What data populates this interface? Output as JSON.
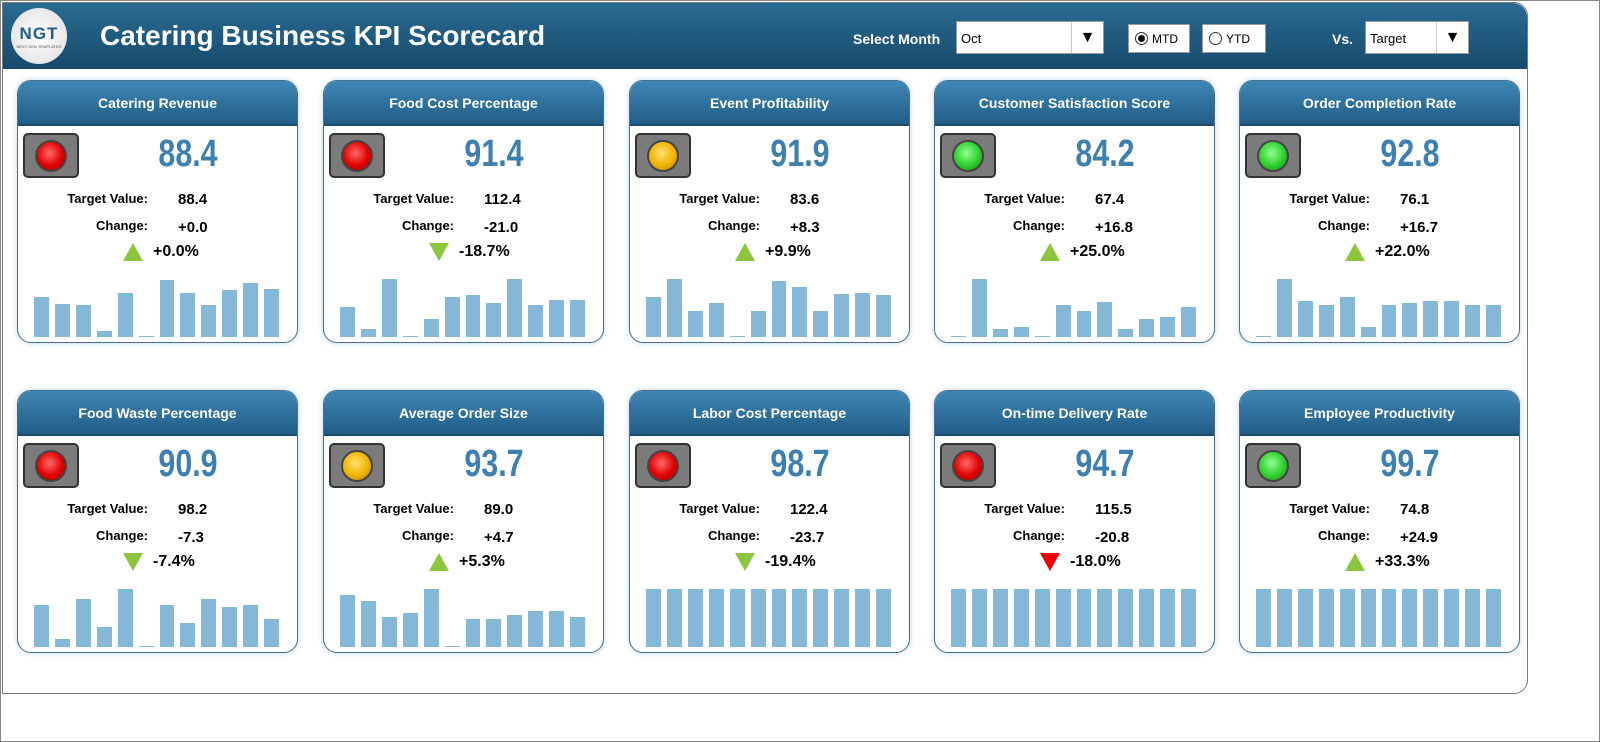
{
  "header": {
    "logo_text": "NGT",
    "logo_sub": "NEXT GEN TEMPLATES",
    "title": "Catering Business KPI Scorecard",
    "month_label": "Select Month",
    "month_value": "Oct",
    "mtd": "MTD",
    "ytd": "YTD",
    "period_selected": "MTD",
    "vs_label": "Vs.",
    "vs_value": "Target"
  },
  "labels": {
    "target": "Target Value:",
    "change": "Change:"
  },
  "colors": {
    "red": "#e00000",
    "yellow": "#f0b400",
    "green": "#2fcf2f",
    "up": "#8cc63f",
    "down_bad": "#e00000"
  },
  "cards": [
    {
      "title": "Catering Revenue",
      "value": "88.4",
      "status": "red",
      "target": "88.4",
      "change": "+0.0",
      "pct": "+0.0%",
      "dir": "up",
      "trend": [
        40,
        33,
        32,
        6,
        44,
        1,
        57,
        44,
        32,
        47,
        54,
        48
      ]
    },
    {
      "title": "Food Cost Percentage",
      "value": "91.4",
      "status": "red",
      "target": "112.4",
      "change": "-21.0",
      "pct": "-18.7%",
      "dir": "down",
      "trend": [
        30,
        8,
        58,
        1,
        18,
        40,
        42,
        34,
        58,
        32,
        37,
        37
      ]
    },
    {
      "title": "Event Profitability",
      "value": "91.9",
      "status": "yellow",
      "target": "83.6",
      "change": "+8.3",
      "pct": "+9.9%",
      "dir": "up",
      "trend": [
        40,
        58,
        26,
        34,
        1,
        26,
        56,
        50,
        26,
        43,
        44,
        42
      ]
    },
    {
      "title": "Customer Satisfaction Score",
      "value": "84.2",
      "status": "green",
      "target": "67.4",
      "change": "+16.8",
      "pct": "+25.0%",
      "dir": "up",
      "trend": [
        1,
        58,
        8,
        10,
        1,
        32,
        26,
        35,
        8,
        18,
        20,
        30
      ]
    },
    {
      "title": "Order Completion Rate",
      "value": "92.8",
      "status": "green",
      "target": "76.1",
      "change": "+16.7",
      "pct": "+22.0%",
      "dir": "up",
      "trend": [
        1,
        58,
        36,
        32,
        40,
        10,
        32,
        34,
        36,
        36,
        32,
        32
      ]
    },
    {
      "title": "Food Waste Percentage",
      "value": "90.9",
      "status": "red",
      "target": "98.2",
      "change": "-7.3",
      "pct": "-7.4%",
      "dir": "down",
      "trend": [
        42,
        8,
        48,
        20,
        58,
        1,
        42,
        24,
        48,
        40,
        42,
        28
      ]
    },
    {
      "title": "Average Order Size",
      "value": "93.7",
      "status": "yellow",
      "target": "89.0",
      "change": "+4.7",
      "pct": "+5.3%",
      "dir": "up",
      "trend": [
        52,
        46,
        30,
        34,
        58,
        1,
        28,
        28,
        32,
        36,
        36,
        30
      ]
    },
    {
      "title": "Labor Cost Percentage",
      "value": "98.7",
      "status": "red",
      "target": "122.4",
      "change": "-23.7",
      "pct": "-19.4%",
      "dir": "down",
      "trend": [
        58,
        58,
        58,
        58,
        58,
        58,
        58,
        58,
        58,
        58,
        58,
        58
      ]
    },
    {
      "title": "On-time Delivery Rate",
      "value": "94.7",
      "status": "red",
      "target": "115.5",
      "change": "-20.8",
      "pct": "-18.0%",
      "dir": "down-red",
      "trend": [
        58,
        58,
        58,
        58,
        58,
        58,
        58,
        58,
        58,
        58,
        58,
        58
      ]
    },
    {
      "title": "Employee Productivity",
      "value": "99.7",
      "status": "green",
      "target": "74.8",
      "change": "+24.9",
      "pct": "+33.3%",
      "dir": "up",
      "trend": [
        58,
        58,
        58,
        58,
        58,
        58,
        58,
        58,
        58,
        58,
        58,
        58
      ]
    }
  ]
}
